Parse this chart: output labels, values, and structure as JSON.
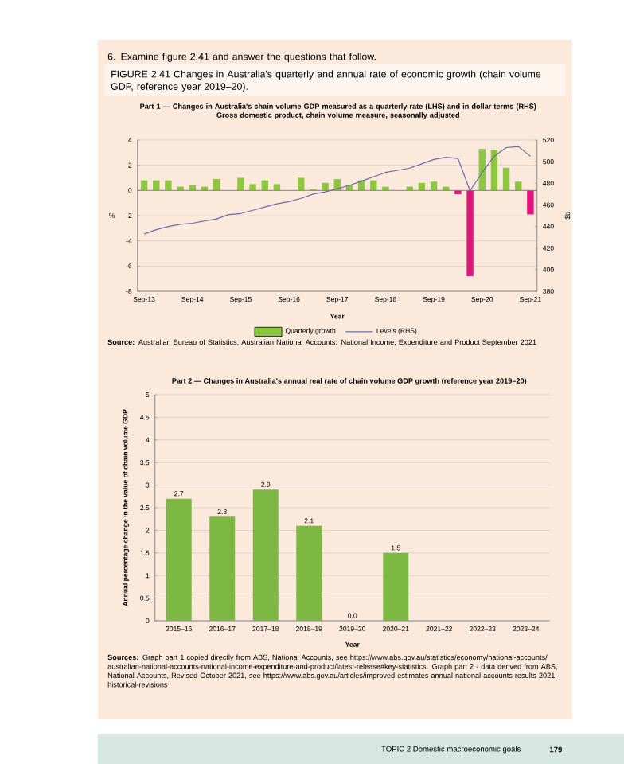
{
  "chart_data": [
    {
      "type": "bar",
      "title": "Part 1 — Changes in Australia's chain volume GDP measured as a quarterly rate (LHS) and in dollar terms (RHS)",
      "subtitle": "Gross domestic product, chain volume measure, seasonally adjusted",
      "xlabel": "Year",
      "ylabel": "%",
      "y2label": "$b",
      "annotations": [
        "6. Examine figure 2.41 and answer the questions that follow.",
        "FIGURE 2.41 Changes in Australia's quarterly and annual rate of economic growth (chain volume GDP, reference year 2019–20).",
        "**Source:** Australian Bureau of Statistics, Australian National Accounts: National Income, Expenditure and Product September 2021"
      ],
      "categories": [
        "Sep-13",
        null,
        null,
        null,
        "Sep-14",
        null,
        null,
        null,
        "Sep-15",
        null,
        null,
        null,
        "Sep-16",
        null,
        null,
        null,
        "Sep-17",
        null,
        null,
        null,
        "Sep-18",
        null,
        null,
        null,
        "Sep-19",
        null,
        null,
        null,
        "Sep-20",
        null,
        null,
        null,
        "Sep-21"
      ],
      "series": [
        {
          "name": "Quarterly growth",
          "type": "bar",
          "color": "#8dc63f",
          "colors": [
            "#8dc63f",
            "#8dc63f",
            "#8dc63f",
            "#8dc63f",
            "#8dc63f",
            "#8dc63f",
            "#8dc63f",
            "#8dc63f",
            "#8dc63f",
            "#8dc63f",
            "#8dc63f",
            "#8dc63f",
            "#8dc63f",
            "#8dc63f",
            "#8dc63f",
            "#8dc63f",
            "#8dc63f",
            "#8dc63f",
            "#8dc63f",
            "#8dc63f",
            "#8dc63f",
            "#8dc63f",
            "#8dc63f",
            "#8dc63f",
            "#8dc63f",
            "#8dc63f",
            "#e0147a",
            "#e0147a",
            "#8dc63f",
            "#8dc63f",
            "#8dc63f",
            "#8dc63f",
            "#e0147a"
          ],
          "values": [
            0.8,
            0.8,
            0.8,
            0.3,
            0.4,
            0.3,
            0.9,
            0,
            1.0,
            0.5,
            0.8,
            0.5,
            0,
            1.0,
            0.1,
            0.6,
            0.9,
            0.4,
            0.8,
            0.8,
            0.3,
            0,
            0.3,
            0.6,
            0.7,
            0.3,
            -0.3,
            -6.8,
            3.3,
            3.2,
            1.8,
            0.7,
            -1.9
          ]
        },
        {
          "name": "Levels (RHS)",
          "type": "line",
          "axis": "y2",
          "color": "#6a6aaa",
          "values": [
            433,
            437,
            440,
            442,
            443,
            445,
            447,
            451,
            452,
            455,
            458,
            461,
            463,
            466,
            470,
            472,
            475,
            478,
            482,
            486,
            490,
            492,
            494,
            498,
            502,
            504,
            503,
            473,
            490,
            505,
            513,
            514,
            505
          ]
        }
      ],
      "ylim": [
        -8,
        4
      ],
      "yticks": [
        -8,
        -6,
        -4,
        -2,
        0,
        2,
        4
      ],
      "y2lim": [
        380,
        520
      ],
      "y2ticks": [
        380,
        400,
        420,
        440,
        460,
        480,
        500,
        520
      ],
      "grid": "y",
      "legend": "bottom"
    },
    {
      "type": "bar",
      "title": "Part 2 — Changes in Australia's annual real rate of chain volume GDP growth (reference year 2019–20)",
      "xlabel": "Year",
      "ylabel": "Annual percentage change in the value of chain volume GDP",
      "annotations": [
        "**Sources:** Graph part 1 copied directly from ABS, National Accounts, see https://www.abs.gov.au/statistics/economy/national-accounts/australian-national-accounts-national-income-expenditure-and-product/latest-release#key-statistics. Graph part 2 - data derived from ABS, National Accounts, Revised October 2021, see https://www.abs.gov.au/articles/improved-estimates-annual-national-accounts-results-2021-historical-revisions",
        "TOPIC 2 Domestic macroeconomic goals",
        "179"
      ],
      "categories": [
        "2015–16",
        "2016–17",
        "2017–18",
        "2018–19",
        "2019–20",
        "2020–21",
        "2021–22",
        "2022–23",
        "2023–24"
      ],
      "values": [
        2.7,
        2.3,
        2.9,
        2.1,
        0.0,
        1.5,
        null,
        null,
        null
      ],
      "value_labels": [
        "2.7",
        "2.3",
        "2.9",
        "2.1",
        "0.0",
        "1.5",
        null,
        null,
        null
      ],
      "color": "#7db843",
      "ylim": [
        0,
        5
      ],
      "yticks": [
        0,
        0.5,
        1,
        1.5,
        2,
        2.5,
        3,
        3.5,
        4,
        4.5,
        5
      ],
      "grid": "y"
    }
  ]
}
